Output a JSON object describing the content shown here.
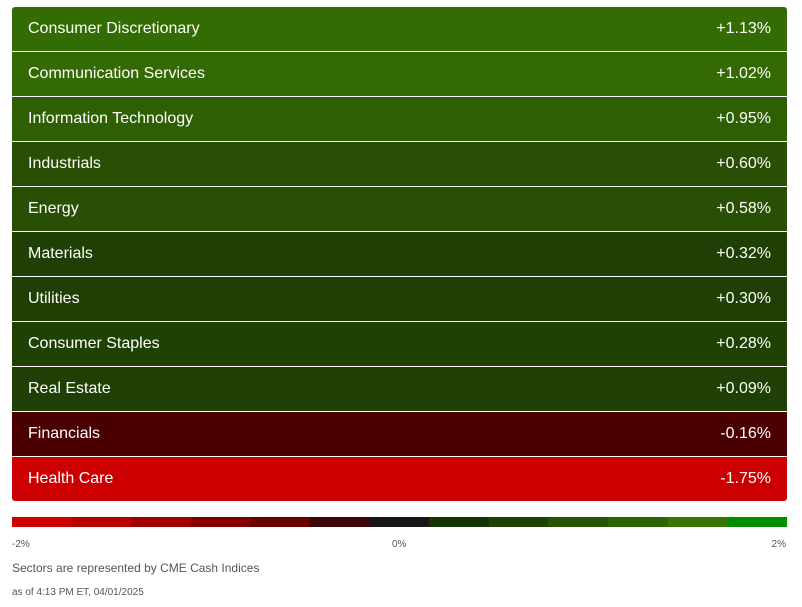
{
  "chart_data": {
    "type": "heatmap",
    "unit": "%",
    "sectors": [
      {
        "name": "Consumer Discretionary",
        "value": 1.13,
        "label": "+1.13%",
        "color": "#346c04"
      },
      {
        "name": "Communication Services",
        "value": 1.02,
        "label": "+1.02%",
        "color": "#336a04"
      },
      {
        "name": "Information Technology",
        "value": 0.95,
        "label": "+0.95%",
        "color": "#2e6003"
      },
      {
        "name": "Industrials",
        "value": 0.6,
        "label": "+0.60%",
        "color": "#284f04"
      },
      {
        "name": "Energy",
        "value": 0.58,
        "label": "+0.58%",
        "color": "#284f04"
      },
      {
        "name": "Materials",
        "value": 0.32,
        "label": "+0.32%",
        "color": "#1f3f04"
      },
      {
        "name": "Utilities",
        "value": 0.3,
        "label": "+0.30%",
        "color": "#1f3f04"
      },
      {
        "name": "Consumer Staples",
        "value": 0.28,
        "label": "+0.28%",
        "color": "#1f4204"
      },
      {
        "name": "Real Estate",
        "value": 0.09,
        "label": "+0.09%",
        "color": "#1f3f04"
      },
      {
        "name": "Financials",
        "value": -0.16,
        "label": "-0.16%",
        "color": "#4a0000"
      },
      {
        "name": "Health Care",
        "value": -1.75,
        "label": "-1.75%",
        "color": "#cc0000"
      }
    ],
    "scale": {
      "min_label": "-2%",
      "mid_label": "0%",
      "max_label": "2%",
      "colors": [
        "#cc0000",
        "#b80000",
        "#9e0000",
        "#840000",
        "#6a0000",
        "#3a0606",
        "#161616",
        "#173304",
        "#1f4204",
        "#275404",
        "#2f6303",
        "#3a7402",
        "#008c00"
      ]
    }
  },
  "footnote": "Sectors are represented by CME Cash Indices",
  "timestamp": "as of 4:13 PM ET, 04/01/2025"
}
